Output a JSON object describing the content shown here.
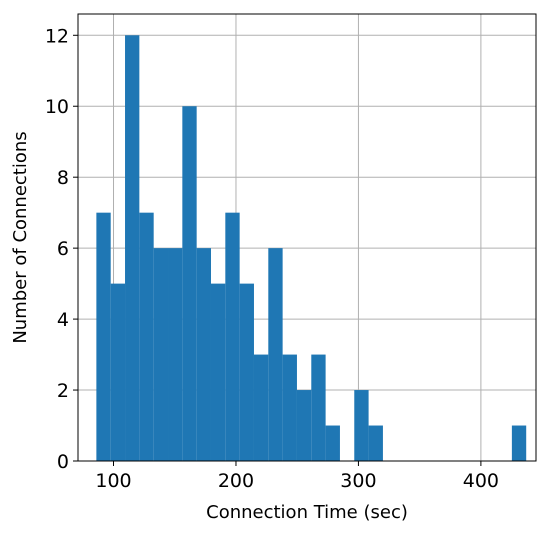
{
  "chart_data": {
    "type": "bar",
    "subtype": "histogram",
    "title": "",
    "xlabel": "Connection Time (sec)",
    "ylabel": "Number of Connections",
    "xlim": [
      71,
      445
    ],
    "ylim": [
      0,
      12.6
    ],
    "grid": true,
    "bar_color": "#1f77b4",
    "bins": [
      {
        "x0": 86,
        "x1": 97.7,
        "count": 7
      },
      {
        "x0": 97.7,
        "x1": 109.4,
        "count": 5
      },
      {
        "x0": 109.4,
        "x1": 121.1,
        "count": 12
      },
      {
        "x0": 121.1,
        "x1": 132.8,
        "count": 7
      },
      {
        "x0": 132.8,
        "x1": 144.5,
        "count": 6
      },
      {
        "x0": 144.5,
        "x1": 156.2,
        "count": 6
      },
      {
        "x0": 156.2,
        "x1": 167.9,
        "count": 10
      },
      {
        "x0": 167.9,
        "x1": 179.6,
        "count": 6
      },
      {
        "x0": 179.6,
        "x1": 191.3,
        "count": 5
      },
      {
        "x0": 191.3,
        "x1": 203.0,
        "count": 7
      },
      {
        "x0": 203.0,
        "x1": 214.7,
        "count": 5
      },
      {
        "x0": 214.7,
        "x1": 226.4,
        "count": 3
      },
      {
        "x0": 226.4,
        "x1": 238.1,
        "count": 6
      },
      {
        "x0": 238.1,
        "x1": 249.8,
        "count": 3
      },
      {
        "x0": 249.8,
        "x1": 261.5,
        "count": 2
      },
      {
        "x0": 261.5,
        "x1": 273.2,
        "count": 3
      },
      {
        "x0": 273.2,
        "x1": 284.9,
        "count": 1
      },
      {
        "x0": 284.9,
        "x1": 296.6,
        "count": 0
      },
      {
        "x0": 296.6,
        "x1": 308.3,
        "count": 2
      },
      {
        "x0": 308.3,
        "x1": 320.0,
        "count": 1
      },
      {
        "x0": 320.0,
        "x1": 331.7,
        "count": 0
      },
      {
        "x0": 331.7,
        "x1": 343.4,
        "count": 0
      },
      {
        "x0": 343.4,
        "x1": 355.1,
        "count": 0
      },
      {
        "x0": 355.1,
        "x1": 366.8,
        "count": 0
      },
      {
        "x0": 366.8,
        "x1": 378.5,
        "count": 0
      },
      {
        "x0": 378.5,
        "x1": 390.2,
        "count": 0
      },
      {
        "x0": 390.2,
        "x1": 401.9,
        "count": 0
      },
      {
        "x0": 401.9,
        "x1": 413.6,
        "count": 0
      },
      {
        "x0": 413.6,
        "x1": 425.3,
        "count": 0
      },
      {
        "x0": 425.3,
        "x1": 437.0,
        "count": 1
      }
    ],
    "x_ticks": [
      {
        "value": 100,
        "label": "100"
      },
      {
        "value": 200,
        "label": "200"
      },
      {
        "value": 300,
        "label": "300"
      },
      {
        "value": 400,
        "label": "400"
      }
    ],
    "y_ticks": [
      {
        "value": 0,
        "label": "0"
      },
      {
        "value": 2,
        "label": "2"
      },
      {
        "value": 4,
        "label": "4"
      },
      {
        "value": 6,
        "label": "6"
      },
      {
        "value": 8,
        "label": "8"
      },
      {
        "value": 10,
        "label": "10"
      },
      {
        "value": 12,
        "label": "12"
      }
    ]
  }
}
